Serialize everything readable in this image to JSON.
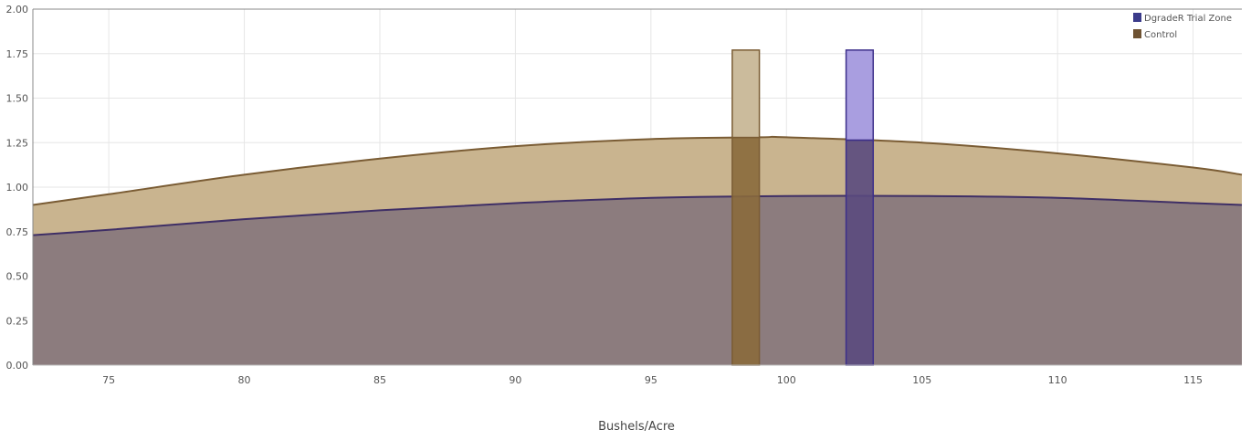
{
  "chart_data": {
    "type": "area",
    "xlabel": "Bushels/Acre",
    "ylabel": "",
    "xlim": [
      72.2,
      116.8
    ],
    "ylim": [
      0,
      2.0
    ],
    "x_ticks": [
      75,
      80,
      85,
      90,
      95,
      100,
      105,
      110,
      115
    ],
    "y_ticks": [
      "0.00",
      "0.25",
      "0.50",
      "0.75",
      "1.00",
      "1.25",
      "1.50",
      "1.75",
      "2.00"
    ],
    "grid": true,
    "legend_position": "top-right",
    "series": [
      {
        "name": "Control",
        "kind": "area",
        "color": "#7a5c34",
        "fill": "#c9b48f",
        "x": [
          72.2,
          75,
          80,
          85,
          90,
          95,
          99,
          100,
          105,
          110,
          115,
          116.8
        ],
        "values": [
          0.9,
          0.96,
          1.07,
          1.16,
          1.23,
          1.27,
          1.28,
          1.28,
          1.25,
          1.19,
          1.11,
          1.07
        ]
      },
      {
        "name": "DgradeR Trial Zone",
        "kind": "area",
        "color": "#3f2f66",
        "fill": "#8c7c7e",
        "x": [
          72.2,
          75,
          80,
          85,
          90,
          95,
          100,
          105,
          110,
          115,
          116.8
        ],
        "values": [
          0.73,
          0.76,
          0.82,
          0.87,
          0.91,
          0.94,
          0.95,
          0.95,
          0.94,
          0.91,
          0.9
        ]
      }
    ],
    "markers": [
      {
        "series": "Control",
        "x_start": 98.0,
        "x_end": 99.0,
        "value": 1.77,
        "color": "#7a5c34",
        "upper_fill": "#cbbb9c",
        "lower_fill": "#8a6a3c"
      },
      {
        "series": "DgradeR Trial Zone",
        "x_start": 102.2,
        "x_end": 103.2,
        "value": 1.77,
        "color": "#3d2f8a",
        "upper_fill": "#a99ee0",
        "lower_fill": "#5a4a7e"
      }
    ],
    "legend": [
      {
        "label": "DgradeR Trial Zone",
        "color": "#3b3b8a"
      },
      {
        "label": "Control",
        "color": "#6e5232"
      }
    ]
  }
}
